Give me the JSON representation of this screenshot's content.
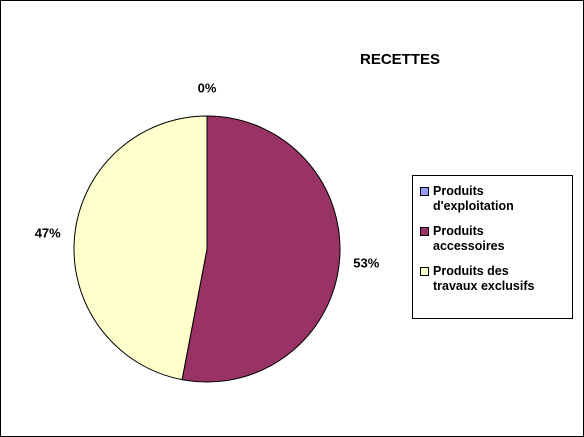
{
  "chart_data": {
    "type": "pie",
    "title": "RECETTES",
    "categories": [
      "Produits d'exploitation",
      "Produits accessoires",
      "Produits des travaux exclusifs"
    ],
    "values": [
      0,
      53,
      47
    ],
    "value_labels": [
      "0%",
      "53%",
      "47%"
    ],
    "colors": [
      "#9999ff",
      "#993366",
      "#ffffcc"
    ],
    "legend": "right"
  }
}
